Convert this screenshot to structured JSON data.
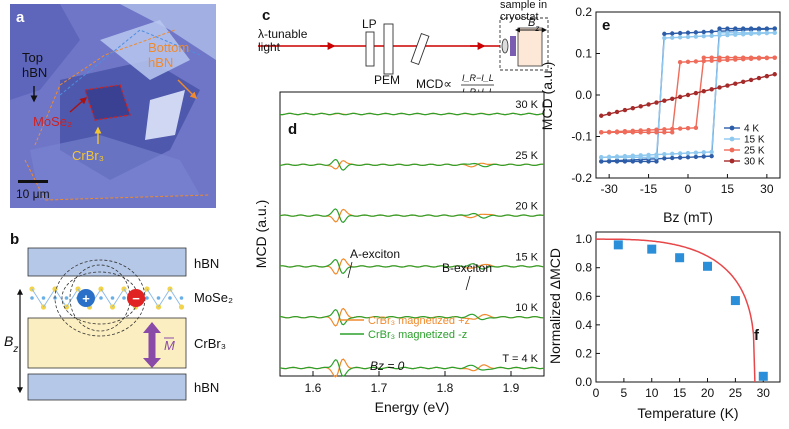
{
  "panel_a": {
    "letter": "a",
    "labels": {
      "top_hbn": "Top\nhBN",
      "bottom_hbn": "Bottom\nhBN",
      "mose2": "MoSe₂",
      "crbr3": "CrBr₃",
      "scale": "10 μm"
    },
    "colors": {
      "bg": "#6f76c8",
      "top_label": "#111111",
      "bottom_label": "#f08a2c",
      "mose2": "#cc2222",
      "crbr3": "#f5c531"
    }
  },
  "panel_b": {
    "letter": "b",
    "labels": {
      "hbn_top": "hBN",
      "mose2": "MoSe₂",
      "crbr3": "CrBr₃",
      "hbn_bottom": "hBN",
      "bz": "Bz",
      "m": "M"
    },
    "charges": {
      "plus": "+",
      "minus": "−"
    },
    "colors": {
      "hbn": "#b5c8e8",
      "crbr3": "#fbeec0",
      "arrow": "#8a4aa8"
    }
  },
  "panel_c": {
    "letter": "c",
    "labels": {
      "light": "λ-tunable\nlight",
      "lp": "LP",
      "pem": "PEM",
      "mcd": "MCD∝",
      "fraction_num": "I_R−I_L",
      "fraction_den": "I_R+I_L",
      "sample": "sample in\ncryostat",
      "bz": "Bz"
    }
  },
  "chart_data": [
    {
      "panel": "d",
      "type": "line",
      "xlabel": "Energy (eV)",
      "ylabel": "MCD (a.u.)",
      "xlim": [
        1.55,
        1.95
      ],
      "xticks": [
        1.6,
        1.7,
        1.8,
        1.9
      ],
      "temperatures": [
        "30 K",
        "25 K",
        "20 K",
        "15 K",
        "10 K",
        "T = 4 K"
      ],
      "amplitude_a": [
        0.02,
        0.55,
        0.75,
        0.85,
        0.95,
        1.0
      ],
      "amplitude_b": [
        0.01,
        0.18,
        0.22,
        0.25,
        0.28,
        0.3
      ],
      "a_center": 1.64,
      "b_center": 1.85,
      "annotations": {
        "a": "A-exciton",
        "b": "B-exciton",
        "bz0": "Bz = 0"
      },
      "series": [
        {
          "name": "CrBr₃ magnetized +z",
          "color": "#f08a2c",
          "sign": 1
        },
        {
          "name": "CrBr₃ magnetized -z",
          "color": "#2ca02c",
          "sign": -1
        }
      ]
    },
    {
      "panel": "e",
      "type": "line",
      "xlabel": "Bz (mT)",
      "ylabel": "MCD (a.u.)",
      "xlim": [
        -35,
        35
      ],
      "ylim": [
        -0.2,
        0.2
      ],
      "xticks": [
        -30,
        -15,
        0,
        15,
        30
      ],
      "yticks": [
        -0.2,
        -0.1,
        0.0,
        0.1,
        0.2
      ],
      "legend_position": "lower-right",
      "series": [
        {
          "name": "4 K",
          "color": "#2d5da8",
          "sat": 0.16,
          "coercive": 12
        },
        {
          "name": "15 K",
          "color": "#8ec8ef",
          "sat": 0.15,
          "coercive": 10
        },
        {
          "name": "25 K",
          "color": "#ef6b5a",
          "sat": 0.09,
          "coercive": 6
        },
        {
          "name": "30 K",
          "color": "#a52a2a",
          "sat": 0.05,
          "coercive": 0
        }
      ]
    },
    {
      "panel": "f",
      "type": "scatter",
      "xlabel": "Temperature (K)",
      "ylabel": "Normalized ΔMCD",
      "xlim": [
        0,
        33
      ],
      "ylim": [
        0,
        1.05
      ],
      "xticks": [
        0,
        5,
        10,
        15,
        20,
        25,
        30
      ],
      "yticks": [
        0.0,
        0.2,
        0.4,
        0.6,
        0.8,
        1.0
      ],
      "x": [
        4,
        10,
        15,
        20,
        25,
        30
      ],
      "y": [
        0.96,
        0.93,
        0.87,
        0.81,
        0.57,
        0.04
      ],
      "fit_tc": 28.5,
      "colors": {
        "points": "#2a8fd8",
        "fit": "#e8474a"
      }
    }
  ],
  "panel_letters": {
    "d": "d",
    "e": "e",
    "f": "f"
  }
}
